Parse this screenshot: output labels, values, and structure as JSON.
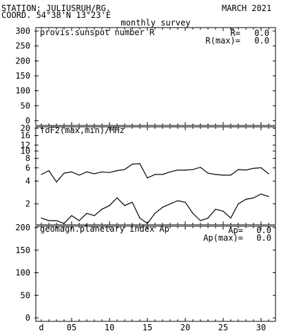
{
  "header": {
    "station": "STATION: JULIUSRUH/RG.",
    "coord": "COORD. 54°38'N 13°23'E",
    "date": "MARCH 2021",
    "survey": "monthly survey"
  },
  "chart_data": [
    {
      "type": "line",
      "title": "provis.sunspot number R",
      "ylim": [
        0,
        300
      ],
      "y_ticks": [
        "300",
        "250",
        "200",
        "150",
        "100",
        "50",
        "0"
      ],
      "stats": [
        {
          "label": "R=",
          "value": "0.0"
        },
        {
          "label": "R(max)=",
          "value": "0.0"
        }
      ],
      "series": []
    },
    {
      "type": "line",
      "title": "foF2(max,min)/MHz",
      "scale": "log",
      "ylim": [
        1,
        20
      ],
      "y_ticks": [
        "20",
        "16",
        "12",
        "10",
        "8",
        "6",
        "4",
        "2"
      ],
      "x_ticks": [
        "d",
        "05",
        "10",
        "15",
        "20",
        "25",
        "30"
      ],
      "x": [
        1,
        2,
        3,
        4,
        5,
        6,
        7,
        8,
        9,
        10,
        11,
        12,
        13,
        14,
        15,
        16,
        17,
        18,
        19,
        20,
        21,
        22,
        23,
        24,
        25,
        26,
        27,
        28,
        29,
        30,
        31
      ],
      "series": [
        {
          "values": [
            4.9,
            5.5,
            3.9,
            5.1,
            5.3,
            4.8,
            5.3,
            5.0,
            5.3,
            5.2,
            5.5,
            5.7,
            6.7,
            6.8,
            4.4,
            4.9,
            4.9,
            5.3,
            5.6,
            5.6,
            5.7,
            6.1,
            5.1,
            4.9,
            4.8,
            4.8,
            5.7,
            5.6,
            5.9,
            6.0,
            5.0
          ]
        },
        {
          "values": [
            1.3,
            1.2,
            1.2,
            1.1,
            1.4,
            1.2,
            1.5,
            1.4,
            1.7,
            1.9,
            2.4,
            1.9,
            2.1,
            1.3,
            1.1,
            1.5,
            1.8,
            2.0,
            2.2,
            2.1,
            1.5,
            1.2,
            1.3,
            1.7,
            1.6,
            1.3,
            2.0,
            2.3,
            2.4,
            2.7,
            2.5
          ]
        }
      ]
    },
    {
      "type": "line",
      "title": "geomagn.planetary index Ap",
      "ylim": [
        0,
        200
      ],
      "y_ticks": [
        "200",
        "150",
        "100",
        "50",
        "0"
      ],
      "x_ticks": [
        "d",
        "05",
        "10",
        "15",
        "20",
        "25",
        "30"
      ],
      "stats": [
        {
          "label": "Ap=",
          "value": "0.0"
        },
        {
          "label": "Ap(max)=",
          "value": "0.0"
        }
      ],
      "series": []
    }
  ]
}
